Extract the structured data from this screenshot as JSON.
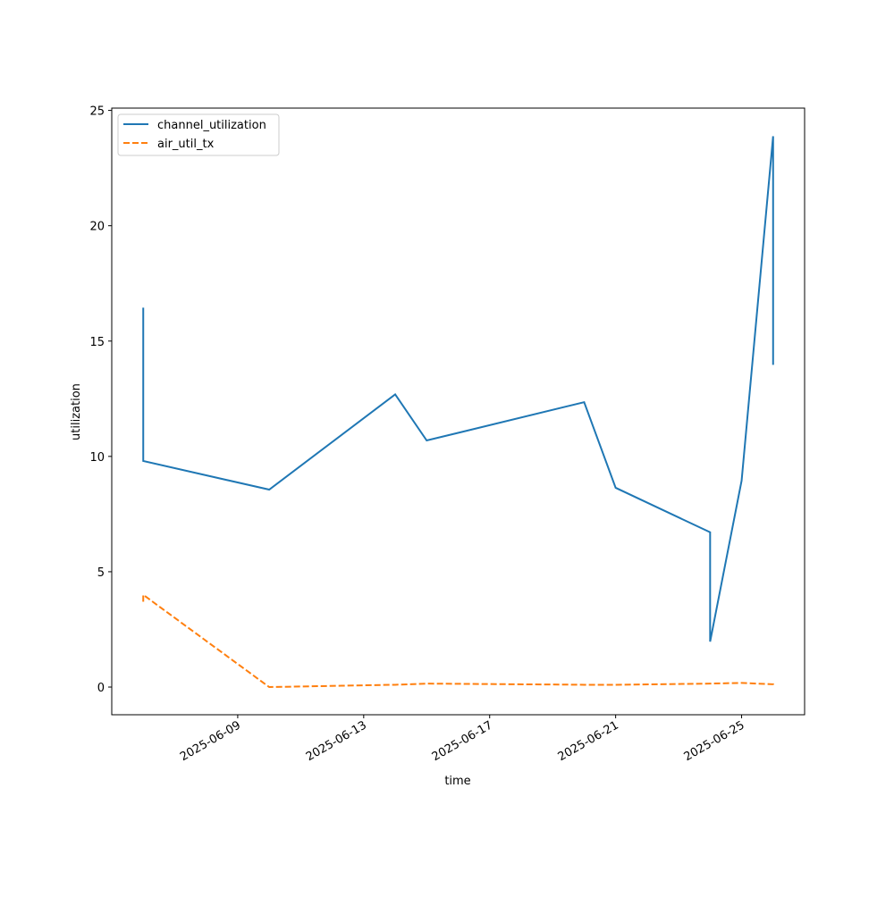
{
  "chart_data": {
    "type": "line",
    "x": [
      "2025-06-06",
      "2025-06-06",
      "2025-06-10",
      "2025-06-14",
      "2025-06-15",
      "2025-06-20",
      "2025-06-21",
      "2025-06-24",
      "2025-06-24",
      "2025-06-25",
      "2025-06-26",
      "2025-06-26"
    ],
    "series": [
      {
        "name": "channel_utilization",
        "color": "#1f77b4",
        "dash": false,
        "values": [
          16.45,
          9.8,
          8.56,
          12.69,
          10.69,
          12.35,
          8.64,
          6.71,
          1.97,
          8.95,
          23.88,
          13.97
        ]
      },
      {
        "name": "air_util_tx",
        "color": "#ff7f0e",
        "dash": true,
        "values": [
          3.7,
          4.0,
          0.0,
          0.1,
          0.15,
          0.1,
          0.1,
          0.15,
          0.15,
          0.18,
          0.12,
          0.1
        ]
      }
    ],
    "xlabel": "time",
    "ylabel": "utilization",
    "xlim": [
      "2025-06-05",
      "2025-06-27"
    ],
    "xticks": [
      "2025-06-09",
      "2025-06-13",
      "2025-06-17",
      "2025-06-21",
      "2025-06-25"
    ],
    "ylim": [
      -1.2,
      25.1
    ],
    "yticks": [
      0,
      5,
      10,
      15,
      20,
      25
    ],
    "grid": false,
    "legend": "upper left"
  }
}
